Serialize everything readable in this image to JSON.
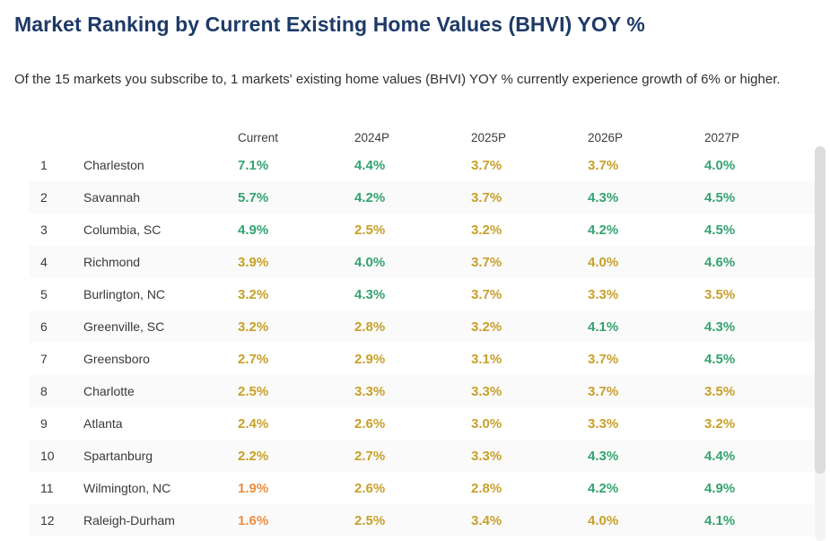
{
  "page": {
    "title": "Market Ranking by Current Existing Home Values (BHVI) YOY %",
    "subtitle": "Of the 15 markets you subscribe to, 1 markets' existing home values (BHVI) YOY % currently experience growth of 6% or higher."
  },
  "colors": {
    "title": "#1e3a68",
    "green": "#34a370",
    "gold": "#c8a02a",
    "orange": "#e98e41",
    "row_stripe": "#fafafa",
    "scrollbar_thumb": "#dcdcdc"
  },
  "chart_data": {
    "type": "table",
    "title": "Market Ranking by Current Existing Home Values (BHVI) YOY %",
    "columns": [
      "Current",
      "2024P",
      "2025P",
      "2026P",
      "2027P"
    ],
    "rows": [
      {
        "rank": "1",
        "market": "Charleston",
        "values": [
          {
            "text": "7.1%",
            "tone": "green"
          },
          {
            "text": "4.4%",
            "tone": "green"
          },
          {
            "text": "3.7%",
            "tone": "gold"
          },
          {
            "text": "3.7%",
            "tone": "gold"
          },
          {
            "text": "4.0%",
            "tone": "green"
          }
        ]
      },
      {
        "rank": "2",
        "market": "Savannah",
        "values": [
          {
            "text": "5.7%",
            "tone": "green"
          },
          {
            "text": "4.2%",
            "tone": "green"
          },
          {
            "text": "3.7%",
            "tone": "gold"
          },
          {
            "text": "4.3%",
            "tone": "green"
          },
          {
            "text": "4.5%",
            "tone": "green"
          }
        ]
      },
      {
        "rank": "3",
        "market": "Columbia, SC",
        "values": [
          {
            "text": "4.9%",
            "tone": "green"
          },
          {
            "text": "2.5%",
            "tone": "gold"
          },
          {
            "text": "3.2%",
            "tone": "gold"
          },
          {
            "text": "4.2%",
            "tone": "green"
          },
          {
            "text": "4.5%",
            "tone": "green"
          }
        ]
      },
      {
        "rank": "4",
        "market": "Richmond",
        "values": [
          {
            "text": "3.9%",
            "tone": "gold"
          },
          {
            "text": "4.0%",
            "tone": "green"
          },
          {
            "text": "3.7%",
            "tone": "gold"
          },
          {
            "text": "4.0%",
            "tone": "gold"
          },
          {
            "text": "4.6%",
            "tone": "green"
          }
        ]
      },
      {
        "rank": "5",
        "market": "Burlington, NC",
        "values": [
          {
            "text": "3.2%",
            "tone": "gold"
          },
          {
            "text": "4.3%",
            "tone": "green"
          },
          {
            "text": "3.7%",
            "tone": "gold"
          },
          {
            "text": "3.3%",
            "tone": "gold"
          },
          {
            "text": "3.5%",
            "tone": "gold"
          }
        ]
      },
      {
        "rank": "6",
        "market": "Greenville, SC",
        "values": [
          {
            "text": "3.2%",
            "tone": "gold"
          },
          {
            "text": "2.8%",
            "tone": "gold"
          },
          {
            "text": "3.2%",
            "tone": "gold"
          },
          {
            "text": "4.1%",
            "tone": "green"
          },
          {
            "text": "4.3%",
            "tone": "green"
          }
        ]
      },
      {
        "rank": "7",
        "market": "Greensboro",
        "values": [
          {
            "text": "2.7%",
            "tone": "gold"
          },
          {
            "text": "2.9%",
            "tone": "gold"
          },
          {
            "text": "3.1%",
            "tone": "gold"
          },
          {
            "text": "3.7%",
            "tone": "gold"
          },
          {
            "text": "4.5%",
            "tone": "green"
          }
        ]
      },
      {
        "rank": "8",
        "market": "Charlotte",
        "values": [
          {
            "text": "2.5%",
            "tone": "gold"
          },
          {
            "text": "3.3%",
            "tone": "gold"
          },
          {
            "text": "3.3%",
            "tone": "gold"
          },
          {
            "text": "3.7%",
            "tone": "gold"
          },
          {
            "text": "3.5%",
            "tone": "gold"
          }
        ]
      },
      {
        "rank": "9",
        "market": "Atlanta",
        "values": [
          {
            "text": "2.4%",
            "tone": "gold"
          },
          {
            "text": "2.6%",
            "tone": "gold"
          },
          {
            "text": "3.0%",
            "tone": "gold"
          },
          {
            "text": "3.3%",
            "tone": "gold"
          },
          {
            "text": "3.2%",
            "tone": "gold"
          }
        ]
      },
      {
        "rank": "10",
        "market": "Spartanburg",
        "values": [
          {
            "text": "2.2%",
            "tone": "gold"
          },
          {
            "text": "2.7%",
            "tone": "gold"
          },
          {
            "text": "3.3%",
            "tone": "gold"
          },
          {
            "text": "4.3%",
            "tone": "green"
          },
          {
            "text": "4.4%",
            "tone": "green"
          }
        ]
      },
      {
        "rank": "11",
        "market": "Wilmington, NC",
        "values": [
          {
            "text": "1.9%",
            "tone": "orange"
          },
          {
            "text": "2.6%",
            "tone": "gold"
          },
          {
            "text": "2.8%",
            "tone": "gold"
          },
          {
            "text": "4.2%",
            "tone": "green"
          },
          {
            "text": "4.9%",
            "tone": "green"
          }
        ]
      },
      {
        "rank": "12",
        "market": "Raleigh-Durham",
        "values": [
          {
            "text": "1.6%",
            "tone": "orange"
          },
          {
            "text": "2.5%",
            "tone": "gold"
          },
          {
            "text": "3.4%",
            "tone": "gold"
          },
          {
            "text": "4.0%",
            "tone": "gold"
          },
          {
            "text": "4.1%",
            "tone": "green"
          }
        ]
      }
    ]
  }
}
